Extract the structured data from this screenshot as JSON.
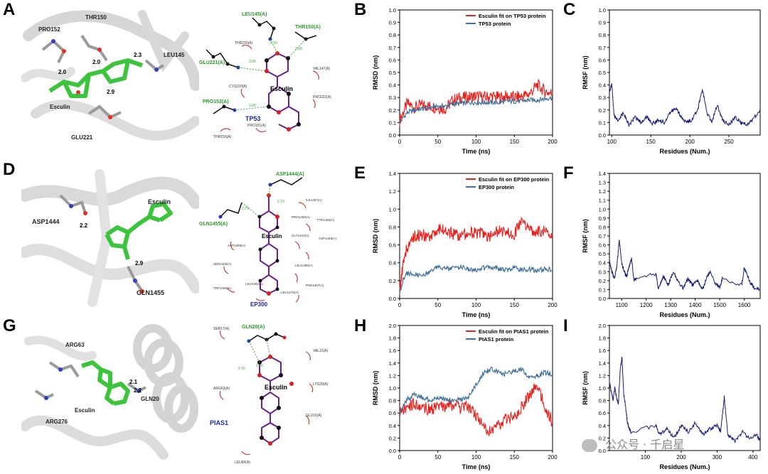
{
  "panels": {
    "A": {
      "letter": "A",
      "residues": [
        "PRO152",
        "THR150",
        "LEU145",
        "GLU221"
      ],
      "ligand": "Esculin",
      "distances": [
        "2.0",
        "2.0",
        "2.3",
        "2.9"
      ]
    },
    "B2": {
      "ligand": "Esculin",
      "protein": "TP53",
      "hbond_residues": [
        "LEU145(A)",
        "THR150(A)",
        "GLU221(A)",
        "PRO152(A)"
      ],
      "distances": [
        "3.00",
        "2.99",
        "2.90",
        "3.00"
      ],
      "contacts": [
        "THR230(A)",
        "VAL147(A)",
        "CYS220(A)",
        "PRO222(A)",
        "PRO151(A)",
        "THR155(A)"
      ]
    },
    "D": {
      "letter": "D",
      "residues": [
        "ASP1444",
        "GLN1455"
      ],
      "ligand": "Esculin",
      "distances": [
        "2.2",
        "2.9"
      ]
    },
    "D2": {
      "ligand": "Esculin",
      "protein": "EP300",
      "hbond_residues": [
        "ASP1444(A)",
        "GLN1455(A)"
      ],
      "distances": [
        "2.79",
        "2.19"
      ],
      "contacts": [
        "ILE1457(A)",
        "PRO1458(A)",
        "TYR1446(A)",
        "GLY1410(A)",
        "ASP1449(A)",
        "ASP1399(A)",
        "SER1400(A)",
        "LEU1398(A)",
        "TRP1466(A)",
        "LEU1462(A)",
        "LEU1478(A)",
        "PHE1467(A)"
      ]
    },
    "G": {
      "letter": "G",
      "residues": [
        "ARG63",
        "ARG276",
        "GLN20"
      ],
      "ligand": "Esculin",
      "distances": [
        "2.1",
        "2.2"
      ]
    },
    "G2": {
      "ligand": "Esculin",
      "protein": "PIAS1",
      "hbond_residues": [
        "GLN20(A)"
      ],
      "distances": [
        "2.16",
        "2.39"
      ],
      "contacts": [
        "SER17(A)",
        "VAL21(A)",
        "ARG63(A)",
        "LYS30(A)",
        "GLU16(A)",
        "LEU60(A)"
      ]
    }
  },
  "watermark": "公众号 · 千启星",
  "colors": {
    "red": "#e8201c",
    "blue": "#3d6e9c",
    "navy": "#1a1f78"
  },
  "chart_data": [
    {
      "id": "B",
      "type": "line",
      "ylabel": "RMSD (nm)",
      "xlabel": "Time (ns)",
      "xlim": [
        0,
        200
      ],
      "ylim": [
        0,
        1.0
      ],
      "xticks": [
        0,
        50,
        100,
        150,
        200
      ],
      "yticks": [
        0,
        0.1,
        0.2,
        0.3,
        0.4,
        0.5,
        0.6,
        0.7,
        0.8,
        0.9,
        1.0
      ],
      "legend": "top-right",
      "series": [
        {
          "name": "Esculin fit on TP53 protein",
          "color": "#e8201c",
          "x": [
            0,
            10,
            20,
            30,
            40,
            50,
            60,
            70,
            80,
            90,
            100,
            110,
            120,
            130,
            140,
            150,
            160,
            170,
            180,
            190,
            200
          ],
          "y": [
            0.12,
            0.25,
            0.22,
            0.24,
            0.23,
            0.22,
            0.21,
            0.28,
            0.3,
            0.3,
            0.31,
            0.3,
            0.31,
            0.3,
            0.31,
            0.3,
            0.31,
            0.33,
            0.4,
            0.35,
            0.33
          ]
        },
        {
          "name": "TP53 protein",
          "color": "#3d6e9c",
          "x": [
            0,
            10,
            20,
            30,
            40,
            50,
            60,
            70,
            80,
            90,
            100,
            110,
            120,
            130,
            140,
            150,
            160,
            170,
            180,
            190,
            200
          ],
          "y": [
            0.1,
            0.18,
            0.2,
            0.21,
            0.22,
            0.23,
            0.23,
            0.25,
            0.25,
            0.26,
            0.26,
            0.26,
            0.26,
            0.26,
            0.27,
            0.27,
            0.27,
            0.28,
            0.28,
            0.29,
            0.3
          ]
        }
      ]
    },
    {
      "id": "C",
      "type": "line",
      "ylabel": "RMSF (nm)",
      "xlabel": "Residues (Num.)",
      "xlim": [
        97,
        290
      ],
      "ylim": [
        0,
        1.0
      ],
      "xticks": [
        100,
        150,
        200,
        250
      ],
      "yticks": [
        0,
        0.1,
        0.2,
        0.3,
        0.4,
        0.5,
        0.6,
        0.7,
        0.8,
        0.9,
        1.0
      ],
      "series": [
        {
          "color": "#1a1f78",
          "x": [
            97,
            100,
            103,
            108,
            115,
            122,
            130,
            138,
            145,
            152,
            160,
            168,
            175,
            182,
            188,
            195,
            202,
            210,
            216,
            222,
            228,
            235,
            242,
            250,
            258,
            265,
            272,
            280,
            290
          ],
          "y": [
            0.35,
            0.4,
            0.15,
            0.12,
            0.18,
            0.08,
            0.14,
            0.1,
            0.15,
            0.09,
            0.12,
            0.1,
            0.18,
            0.22,
            0.15,
            0.1,
            0.12,
            0.2,
            0.36,
            0.18,
            0.1,
            0.24,
            0.12,
            0.08,
            0.14,
            0.1,
            0.08,
            0.12,
            0.2
          ]
        }
      ]
    },
    {
      "id": "E",
      "type": "line",
      "ylabel": "RMSD (nm)",
      "xlabel": "Time (ns)",
      "xlim": [
        0,
        200
      ],
      "ylim": [
        0,
        1.4
      ],
      "xticks": [
        0,
        50,
        100,
        150,
        200
      ],
      "yticks": [
        0,
        0.2,
        0.4,
        0.6,
        0.8,
        1.0,
        1.2,
        1.4
      ],
      "legend": "top-right",
      "series": [
        {
          "name": "Esculin fit on EP300 protein",
          "color": "#e8201c",
          "x": [
            0,
            5,
            10,
            20,
            30,
            40,
            50,
            60,
            70,
            80,
            90,
            100,
            110,
            120,
            130,
            140,
            150,
            160,
            170,
            180,
            190,
            200
          ],
          "y": [
            0.1,
            0.4,
            0.58,
            0.7,
            0.72,
            0.65,
            0.8,
            0.75,
            0.72,
            0.7,
            0.74,
            0.73,
            0.72,
            0.7,
            0.76,
            0.75,
            0.73,
            0.85,
            0.78,
            0.75,
            0.77,
            0.72
          ]
        },
        {
          "name": "EP300 protein",
          "color": "#3d6e9c",
          "x": [
            0,
            5,
            10,
            20,
            30,
            40,
            50,
            60,
            70,
            80,
            90,
            100,
            110,
            120,
            130,
            140,
            150,
            160,
            170,
            180,
            190,
            200
          ],
          "y": [
            0.05,
            0.22,
            0.28,
            0.27,
            0.26,
            0.3,
            0.35,
            0.33,
            0.34,
            0.36,
            0.33,
            0.32,
            0.34,
            0.35,
            0.33,
            0.32,
            0.34,
            0.32,
            0.33,
            0.31,
            0.33,
            0.32
          ]
        }
      ]
    },
    {
      "id": "F",
      "type": "line",
      "ylabel": "RMSF (nm)",
      "xlabel": "Residues (Num.)",
      "xlim": [
        1050,
        1665
      ],
      "ylim": [
        0,
        1.4
      ],
      "xticks": [
        1100,
        1200,
        1300,
        1400,
        1500,
        1600
      ],
      "yticks": [
        0,
        0.1,
        0.2,
        0.3,
        0.4,
        0.5,
        0.6,
        0.7,
        0.8,
        0.9,
        1.0,
        1.1,
        1.2,
        1.3,
        1.4
      ],
      "series": [
        {
          "color": "#1a1f78",
          "x": [
            1050,
            1060,
            1070,
            1080,
            1090,
            1100,
            1110,
            1120,
            1130,
            1140,
            1150,
            1160,
            1240,
            1250,
            1270,
            1290,
            1310,
            1330,
            1350,
            1370,
            1390,
            1410,
            1430,
            1450,
            1460,
            1480,
            1500,
            1510,
            1590,
            1600,
            1620,
            1640,
            1665
          ],
          "y": [
            0.42,
            0.3,
            0.22,
            0.35,
            0.65,
            0.4,
            0.3,
            0.25,
            0.35,
            0.45,
            0.2,
            0.22,
            0.28,
            0.1,
            0.25,
            0.15,
            0.3,
            0.18,
            0.12,
            0.22,
            0.15,
            0.2,
            0.1,
            0.25,
            0.3,
            0.18,
            0.12,
            0.22,
            0.15,
            0.35,
            0.2,
            0.12,
            0.1
          ]
        }
      ]
    },
    {
      "id": "H",
      "type": "line",
      "ylabel": "RMSD (nm)",
      "xlabel": "Time (ns)",
      "xlim": [
        0,
        200
      ],
      "ylim": [
        0,
        2.0
      ],
      "xticks": [
        0,
        50,
        100,
        150,
        200
      ],
      "yticks": [
        0,
        0.2,
        0.4,
        0.6,
        0.8,
        1.0,
        1.2,
        1.4,
        1.6,
        1.8,
        2.0
      ],
      "legend": "top-right",
      "series": [
        {
          "name": "Esculin fit on PIAS1 protein",
          "color": "#e8201c",
          "x": [
            0,
            10,
            20,
            30,
            40,
            50,
            60,
            70,
            80,
            90,
            100,
            110,
            120,
            130,
            140,
            150,
            160,
            170,
            180,
            190,
            200
          ],
          "y": [
            0.65,
            0.7,
            0.75,
            0.7,
            0.65,
            0.72,
            0.7,
            0.72,
            0.68,
            0.7,
            0.55,
            0.35,
            0.28,
            0.4,
            0.5,
            0.55,
            0.7,
            0.9,
            1.05,
            0.7,
            0.45
          ]
        },
        {
          "name": "PIAS1 protein",
          "color": "#3d6e9c",
          "x": [
            0,
            10,
            20,
            30,
            40,
            50,
            60,
            70,
            80,
            90,
            100,
            110,
            120,
            130,
            140,
            150,
            160,
            170,
            180,
            190,
            200
          ],
          "y": [
            0.6,
            0.82,
            0.9,
            0.85,
            0.8,
            0.85,
            0.82,
            0.8,
            0.82,
            0.85,
            1.05,
            1.25,
            1.3,
            1.25,
            1.22,
            1.28,
            1.3,
            1.15,
            1.2,
            1.25,
            1.22
          ]
        }
      ]
    },
    {
      "id": "I",
      "type": "line",
      "ylabel": "RMSF (nm)",
      "xlabel": "Residues (Num.)",
      "xlim": [
        0,
        420
      ],
      "ylim": [
        0,
        2.0
      ],
      "xticks": [
        100,
        200,
        300,
        400
      ],
      "yticks": [
        0,
        0.2,
        0.4,
        0.6,
        0.8,
        1.0,
        1.2,
        1.4,
        1.6,
        1.8,
        2.0
      ],
      "series": [
        {
          "color": "#1a1f78",
          "x": [
            0,
            5,
            10,
            15,
            20,
            25,
            30,
            35,
            40,
            45,
            50,
            55,
            60,
            130,
            140,
            160,
            180,
            200,
            220,
            240,
            260,
            280,
            300,
            310,
            320,
            330,
            350,
            370,
            390,
            410,
            420
          ],
          "y": [
            1.1,
            0.95,
            0.8,
            1.0,
            0.85,
            0.75,
            1.3,
            1.5,
            0.9,
            0.7,
            0.45,
            0.35,
            0.3,
            0.4,
            0.25,
            0.35,
            0.2,
            0.4,
            0.3,
            0.45,
            0.25,
            0.35,
            0.4,
            0.3,
            0.85,
            0.25,
            0.15,
            0.3,
            0.2,
            0.25,
            0.15
          ]
        }
      ]
    }
  ]
}
